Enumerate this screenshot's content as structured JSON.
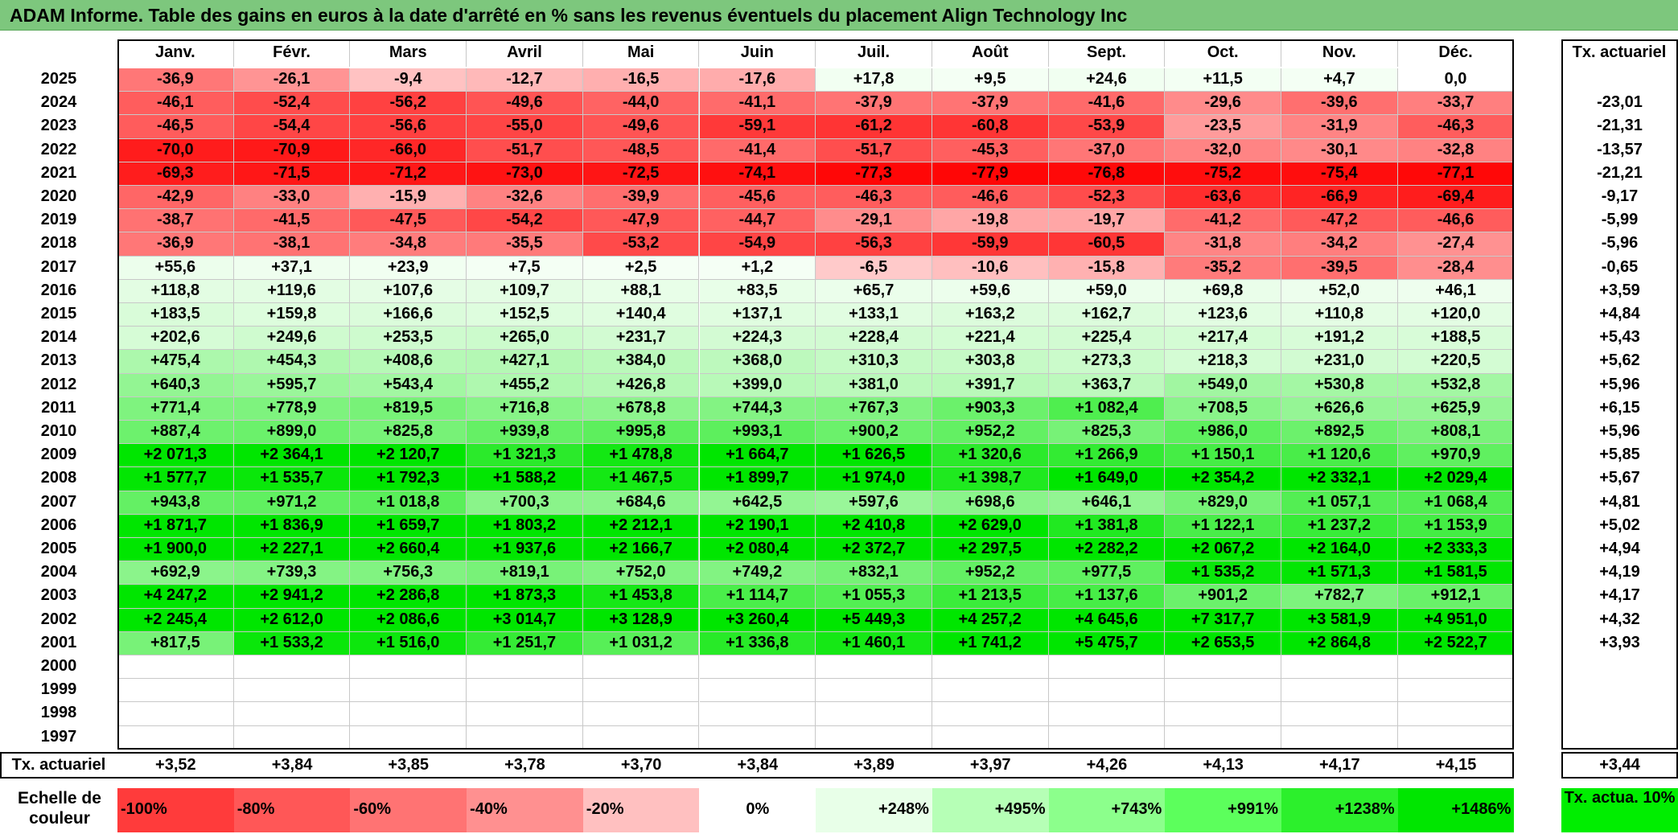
{
  "title": "ADAM Informe. Table des gains en euros à la date d'arrêté en % sans les revenus éventuels du placement Align Technology Inc",
  "chart_data": {
    "type": "heatmap",
    "months": [
      "Janv.",
      "Févr.",
      "Mars",
      "Avril",
      "Mai",
      "Juin",
      "Juil.",
      "Août",
      "Sept.",
      "Oct.",
      "Nov.",
      "Déc."
    ],
    "rate_header": "Tx. actuariel",
    "years": [
      "2025",
      "2024",
      "2023",
      "2022",
      "2021",
      "2020",
      "2019",
      "2018",
      "2017",
      "2016",
      "2015",
      "2014",
      "2013",
      "2012",
      "2011",
      "2010",
      "2009",
      "2008",
      "2007",
      "2006",
      "2005",
      "2004",
      "2003",
      "2002",
      "2001",
      "2000",
      "1999",
      "1998",
      "1997"
    ],
    "values": [
      [
        "-36,9",
        "-26,1",
        "-9,4",
        "-12,7",
        "-16,5",
        "-17,6",
        "+17,8",
        "+9,5",
        "+24,6",
        "+11,5",
        "+4,7",
        "0,0"
      ],
      [
        "-46,1",
        "-52,4",
        "-56,2",
        "-49,6",
        "-44,0",
        "-41,1",
        "-37,9",
        "-37,9",
        "-41,6",
        "-29,6",
        "-39,6",
        "-33,7"
      ],
      [
        "-46,5",
        "-54,4",
        "-56,6",
        "-55,0",
        "-49,6",
        "-59,1",
        "-61,2",
        "-60,8",
        "-53,9",
        "-23,5",
        "-31,9",
        "-46,3"
      ],
      [
        "-70,0",
        "-70,9",
        "-66,0",
        "-51,7",
        "-48,5",
        "-41,4",
        "-51,7",
        "-45,3",
        "-37,0",
        "-32,0",
        "-30,1",
        "-32,8"
      ],
      [
        "-69,3",
        "-71,5",
        "-71,2",
        "-73,0",
        "-72,5",
        "-74,1",
        "-77,3",
        "-77,9",
        "-76,8",
        "-75,2",
        "-75,4",
        "-77,1"
      ],
      [
        "-42,9",
        "-33,0",
        "-15,9",
        "-32,6",
        "-39,9",
        "-45,6",
        "-46,3",
        "-46,6",
        "-52,3",
        "-63,6",
        "-66,9",
        "-69,4"
      ],
      [
        "-38,7",
        "-41,5",
        "-47,5",
        "-54,2",
        "-47,9",
        "-44,7",
        "-29,1",
        "-19,8",
        "-19,7",
        "-41,2",
        "-47,2",
        "-46,6"
      ],
      [
        "-36,9",
        "-38,1",
        "-34,8",
        "-35,5",
        "-53,2",
        "-54,9",
        "-56,3",
        "-59,9",
        "-60,5",
        "-31,8",
        "-34,2",
        "-27,4"
      ],
      [
        "+55,6",
        "+37,1",
        "+23,9",
        "+7,5",
        "+2,5",
        "+1,2",
        "-6,5",
        "-10,6",
        "-15,8",
        "-35,2",
        "-39,5",
        "-28,4"
      ],
      [
        "+118,8",
        "+119,6",
        "+107,6",
        "+109,7",
        "+88,1",
        "+83,5",
        "+65,7",
        "+59,6",
        "+59,0",
        "+69,8",
        "+52,0",
        "+46,1"
      ],
      [
        "+183,5",
        "+159,8",
        "+166,6",
        "+152,5",
        "+140,4",
        "+137,1",
        "+133,1",
        "+163,2",
        "+162,7",
        "+123,6",
        "+110,8",
        "+120,0"
      ],
      [
        "+202,6",
        "+249,6",
        "+253,5",
        "+265,0",
        "+231,7",
        "+224,3",
        "+228,4",
        "+221,4",
        "+225,4",
        "+217,4",
        "+191,2",
        "+188,5"
      ],
      [
        "+475,4",
        "+454,3",
        "+408,6",
        "+427,1",
        "+384,0",
        "+368,0",
        "+310,3",
        "+303,8",
        "+273,3",
        "+218,3",
        "+231,0",
        "+220,5"
      ],
      [
        "+640,3",
        "+595,7",
        "+543,4",
        "+455,2",
        "+426,8",
        "+399,0",
        "+381,0",
        "+391,7",
        "+363,7",
        "+549,0",
        "+530,8",
        "+532,8"
      ],
      [
        "+771,4",
        "+778,9",
        "+819,5",
        "+716,8",
        "+678,8",
        "+744,3",
        "+767,3",
        "+903,3",
        "+1 082,4",
        "+708,5",
        "+626,6",
        "+625,9"
      ],
      [
        "+887,4",
        "+899,0",
        "+825,8",
        "+939,8",
        "+995,8",
        "+993,1",
        "+900,2",
        "+952,2",
        "+825,3",
        "+986,0",
        "+892,5",
        "+808,1"
      ],
      [
        "+2 071,3",
        "+2 364,1",
        "+2 120,7",
        "+1 321,3",
        "+1 478,8",
        "+1 664,7",
        "+1 626,5",
        "+1 320,6",
        "+1 266,9",
        "+1 150,1",
        "+1 120,6",
        "+970,9"
      ],
      [
        "+1 577,7",
        "+1 535,7",
        "+1 792,3",
        "+1 588,2",
        "+1 467,5",
        "+1 899,7",
        "+1 974,0",
        "+1 398,7",
        "+1 649,0",
        "+2 354,2",
        "+2 332,1",
        "+2 029,4"
      ],
      [
        "+943,8",
        "+971,2",
        "+1 018,8",
        "+700,3",
        "+684,6",
        "+642,5",
        "+597,6",
        "+698,6",
        "+646,1",
        "+829,0",
        "+1 057,1",
        "+1 068,4"
      ],
      [
        "+1 871,7",
        "+1 836,9",
        "+1 659,7",
        "+1 803,2",
        "+2 212,1",
        "+2 190,1",
        "+2 410,8",
        "+2 629,0",
        "+1 381,8",
        "+1 122,1",
        "+1 237,2",
        "+1 153,9"
      ],
      [
        "+1 900,0",
        "+2 227,1",
        "+2 660,4",
        "+1 937,6",
        "+2 166,7",
        "+2 080,4",
        "+2 372,7",
        "+2 297,5",
        "+2 282,2",
        "+2 067,2",
        "+2 164,0",
        "+2 333,3"
      ],
      [
        "+692,9",
        "+739,3",
        "+756,3",
        "+819,1",
        "+752,0",
        "+749,2",
        "+832,1",
        "+952,2",
        "+977,5",
        "+1 535,2",
        "+1 571,3",
        "+1 581,5"
      ],
      [
        "+4 247,2",
        "+2 941,2",
        "+2 286,8",
        "+1 873,3",
        "+1 453,8",
        "+1 114,7",
        "+1 055,3",
        "+1 213,5",
        "+1 137,6",
        "+901,2",
        "+782,7",
        "+912,1"
      ],
      [
        "+2 245,4",
        "+2 612,0",
        "+2 086,6",
        "+3 014,7",
        "+3 128,9",
        "+3 260,4",
        "+5 449,3",
        "+4 257,2",
        "+4 645,6",
        "+7 317,7",
        "+3 581,9",
        "+4 951,0"
      ],
      [
        "+817,5",
        "+1 533,2",
        "+1 516,0",
        "+1 251,7",
        "+1 031,2",
        "+1 336,8",
        "+1 460,1",
        "+1 741,2",
        "+5 475,7",
        "+2 653,5",
        "+2 864,8",
        "+2 522,7"
      ],
      [
        "",
        "",
        "",
        "",
        "",
        "",
        "",
        "",
        "",
        "",
        "",
        ""
      ],
      [
        "",
        "",
        "",
        "",
        "",
        "",
        "",
        "",
        "",
        "",
        "",
        ""
      ],
      [
        "",
        "",
        "",
        "",
        "",
        "",
        "",
        "",
        "",
        "",
        "",
        ""
      ],
      [
        "",
        "",
        "",
        "",
        "",
        "",
        "",
        "",
        "",
        "",
        "",
        ""
      ]
    ],
    "row_rates": [
      "",
      "-23,01",
      "-21,31",
      "-13,57",
      "-21,21",
      "-9,17",
      "-5,99",
      "-5,96",
      "-0,65",
      "+3,59",
      "+4,84",
      "+5,43",
      "+5,62",
      "+5,96",
      "+6,15",
      "+5,96",
      "+5,85",
      "+5,67",
      "+4,81",
      "+5,02",
      "+4,94",
      "+4,19",
      "+4,17",
      "+4,32",
      "+3,93",
      "",
      "",
      "",
      ""
    ],
    "footer_label": "Tx. actuariel",
    "column_rates": [
      "+3,52",
      "+3,84",
      "+3,85",
      "+3,78",
      "+3,70",
      "+3,84",
      "+3,89",
      "+3,97",
      "+4,26",
      "+4,13",
      "+4,17",
      "+4,15"
    ],
    "overall_rate": "+3,44",
    "scale_caption": "Echelle de couleur",
    "scale_labels": [
      "-100%",
      "-80%",
      "-60%",
      "-40%",
      "-20%",
      "0%",
      "+248%",
      "+495%",
      "+743%",
      "+991%",
      "+1238%",
      "+1486%"
    ],
    "scale_colors": [
      "#ff3b3b",
      "#ff5757",
      "#ff7373",
      "#ff9090",
      "#ffc0c0",
      "#ffffff",
      "#e8ffe8",
      "#b6ffb6",
      "#8cff8c",
      "#5cff5c",
      "#2cf02c",
      "#00e600"
    ],
    "reference_label": "Tx. actua. 10%",
    "reference_color": "#00ee00"
  }
}
